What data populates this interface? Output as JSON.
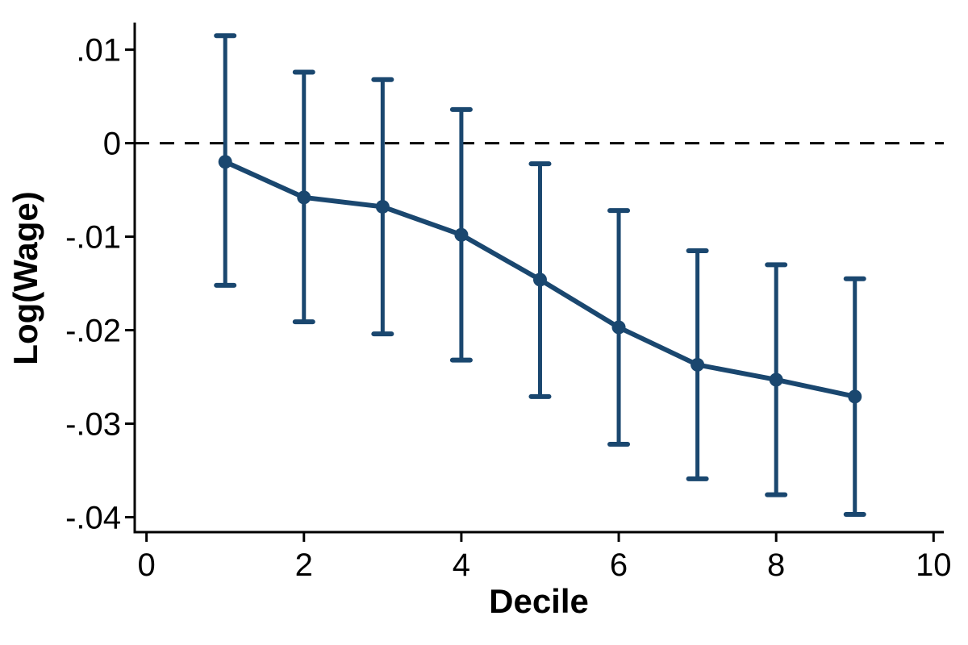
{
  "figure": {
    "background": "#ffffff"
  },
  "chart_data": {
    "type": "line",
    "title": "",
    "xlabel": "Decile",
    "ylabel": "Log(Wage)",
    "x": [
      1,
      2,
      3,
      4,
      5,
      6,
      7,
      8,
      9
    ],
    "series": [
      {
        "name": "estimate",
        "values": [
          -0.002,
          -0.0058,
          -0.0068,
          -0.0098,
          -0.0146,
          -0.0197,
          -0.0237,
          -0.0253,
          -0.0271
        ]
      },
      {
        "name": "ci_lower",
        "values": [
          -0.0152,
          -0.0191,
          -0.0204,
          -0.0232,
          -0.0271,
          -0.0322,
          -0.0359,
          -0.0376,
          -0.0397
        ]
      },
      {
        "name": "ci_upper",
        "values": [
          0.0115,
          0.0076,
          0.0068,
          0.0036,
          -0.0022,
          -0.0072,
          -0.0115,
          -0.013,
          -0.0145
        ]
      }
    ],
    "reference_line_y": 0,
    "xlim": [
      -0.15,
      10.13
    ],
    "ylim": [
      -0.0416,
      0.0129
    ],
    "x_ticks": [
      0,
      2,
      4,
      6,
      8,
      10
    ],
    "x_tick_labels": [
      "0",
      "2",
      "4",
      "6",
      "8",
      "10"
    ],
    "y_ticks": [
      0.01,
      0,
      -0.01,
      -0.02,
      -0.03,
      -0.04
    ],
    "y_tick_labels": [
      ".01",
      "0",
      "-.01",
      "-.02",
      "-.03",
      "-.04"
    ],
    "grid": false,
    "legend": false,
    "line_color": "#1a476f",
    "axis_color": "#000000",
    "marker": "circle"
  }
}
